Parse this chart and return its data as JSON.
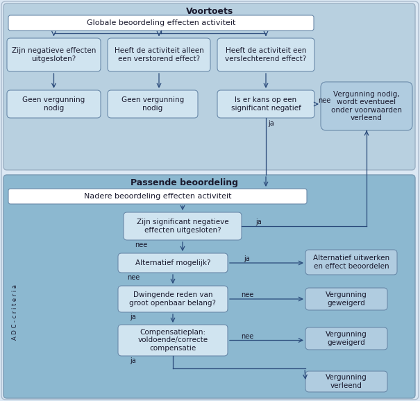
{
  "bg_light_gray": "#dce8f0",
  "bg_voortoets": "#b8d0e0",
  "bg_passende": "#8cb8d0",
  "box_white": "#ffffff",
  "box_light": "#d0e4f0",
  "box_medium": "#b0cce0",
  "text_dark": "#1a1a2e",
  "arrow_color": "#2a4a7a",
  "title_voortoets": "Voortoets",
  "title_passende": "Passende beoordeling",
  "box1_text": "Globale beoordeling effecten activiteit",
  "box2a_text": "Zijn negatieve effecten\nuitgesloten?",
  "box2b_text": "Heeft de activiteit alleen\neen verstorend effect?",
  "box2c_text": "Heeft de activiteit een\nverslechterend effect?",
  "box3a_text": "Geen vergunning\nnodig",
  "box3b_text": "Geen vergunning\nnodig",
  "box3c_text": "Is er kans op een\nsignificant negatief",
  "box_verg_nodig": "Vergunning nodig,\nwordt eventueel\nonder voorwaarden\nverleend",
  "box4_text": "Nadere beoordeling effecten activiteit",
  "box5_text": "Zijn significant negatieve\neffecten uitgesloten?",
  "box6_text": "Alternatief mogelijk?",
  "box7_text": "Dwingende reden van\ngroot openbaar belang?",
  "box8_text": "Compensatieplan:\nvoldoende/correcte\ncompensatie",
  "box_alt": "Alternatief uitwerken\nen effect beoordelen",
  "box_verg1": "Vergunning\ngeweigerd",
  "box_verg2": "Vergunning\ngeweigerd",
  "box_verg3": "Vergunning\nverleend",
  "adc_label": "A D C - c r i t e r i a"
}
